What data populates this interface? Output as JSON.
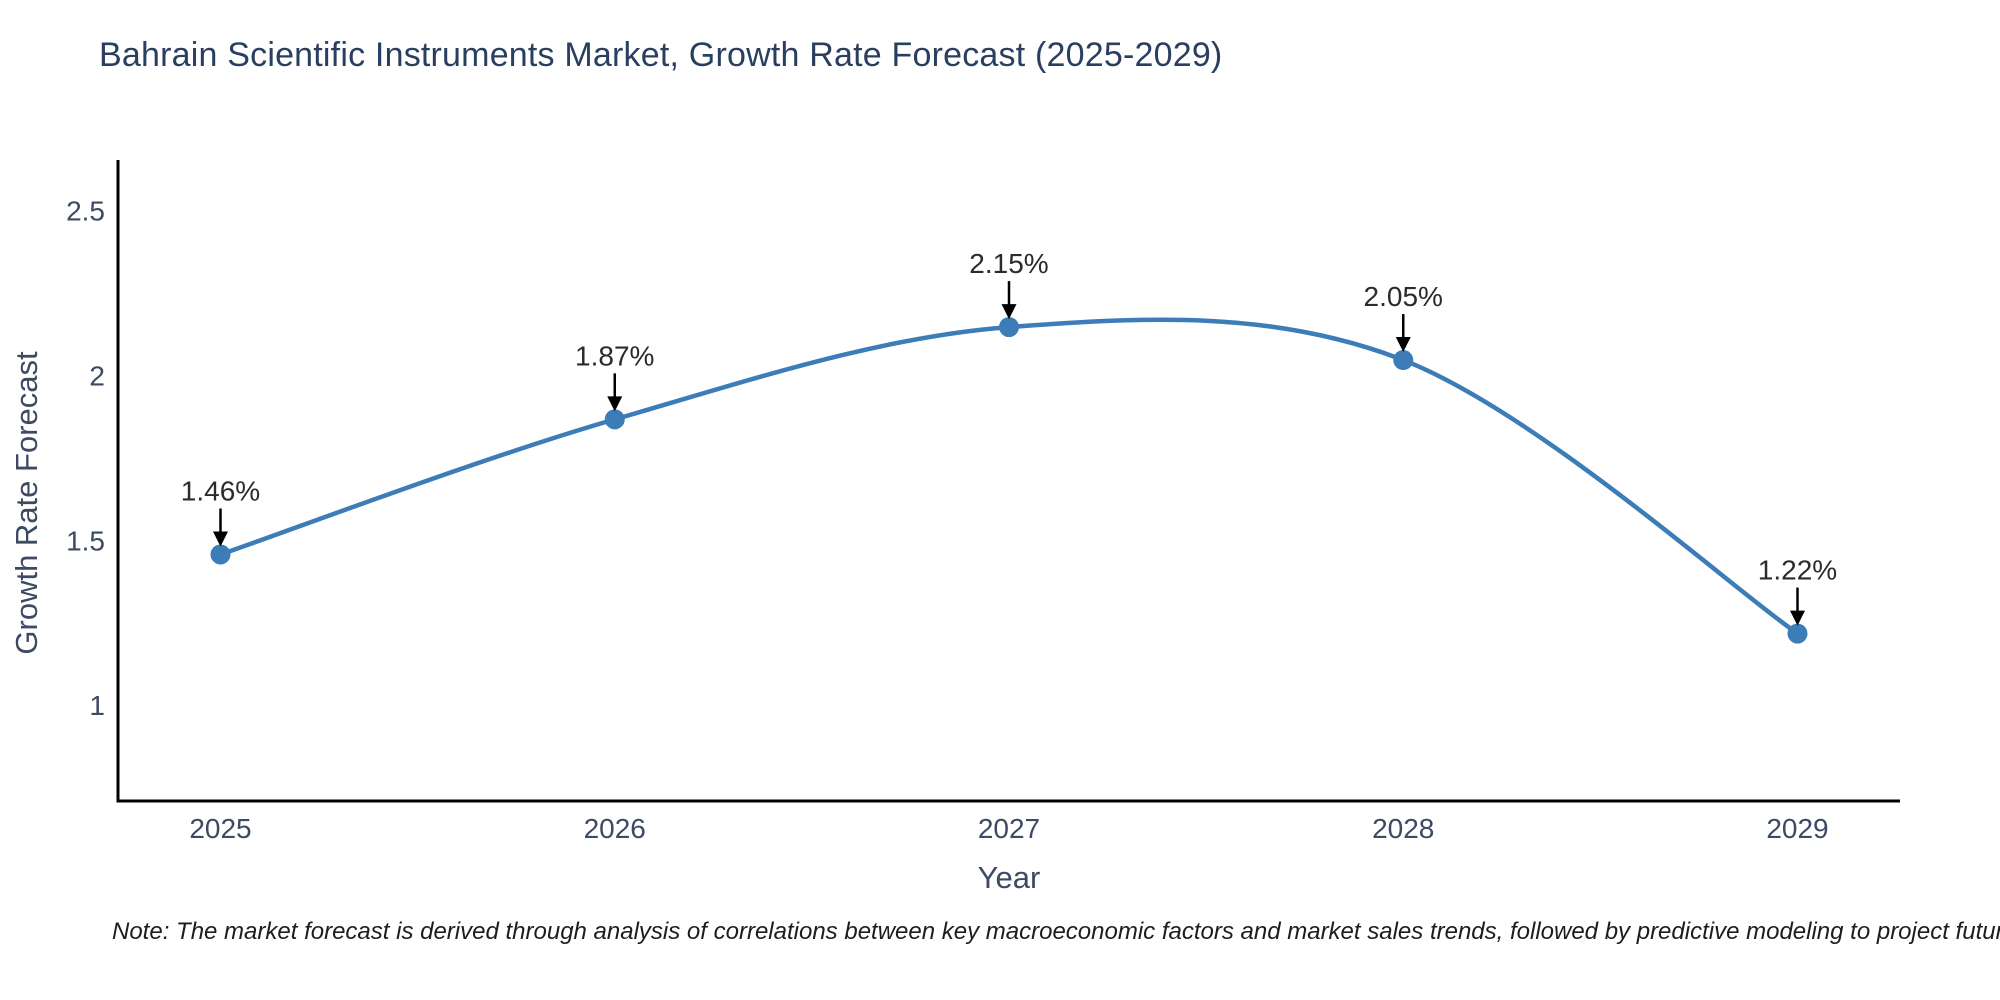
{
  "title": "Bahrain Scientific Instruments Market, Growth Rate Forecast (2025-2029)",
  "note": {
    "text": "Note: The market forecast is derived through analysis of correlations between key macroeconomic factors and market sales trends, followed by predictive modeling to project future sales"
  },
  "chart_data": {
    "type": "line",
    "title": "Bahrain Scientific Instruments Market, Growth Rate Forecast (2025-2029)",
    "xlabel": "Year",
    "ylabel": "Growth Rate Forecast",
    "x": [
      2025,
      2026,
      2027,
      2028,
      2029
    ],
    "values": [
      1.46,
      1.87,
      2.15,
      2.05,
      1.22
    ],
    "point_labels": [
      "1.46%",
      "1.87%",
      "2.15%",
      "2.05%",
      "1.22%"
    ],
    "xticks": [
      "2025",
      "2026",
      "2027",
      "2028",
      "2029"
    ],
    "xtick_positions": [
      2025,
      2026,
      2027,
      2028,
      2029
    ],
    "yticks": [
      "1",
      "1.5",
      "2",
      "2.5"
    ],
    "ytick_positions": [
      1,
      1.5,
      2,
      2.5
    ],
    "xlim": [
      2024.74,
      2029.26
    ],
    "ylim": [
      0.712,
      2.657
    ],
    "grid": false,
    "legend": false,
    "smooth": true,
    "line_color": "#3c7db8",
    "marker_color": "#3c7db8",
    "annotation_arrow_color": "#000000",
    "annotation_text_color": "#2b2b2b",
    "spine_color": "#000000",
    "tick_text_color": "#3d4a63"
  }
}
